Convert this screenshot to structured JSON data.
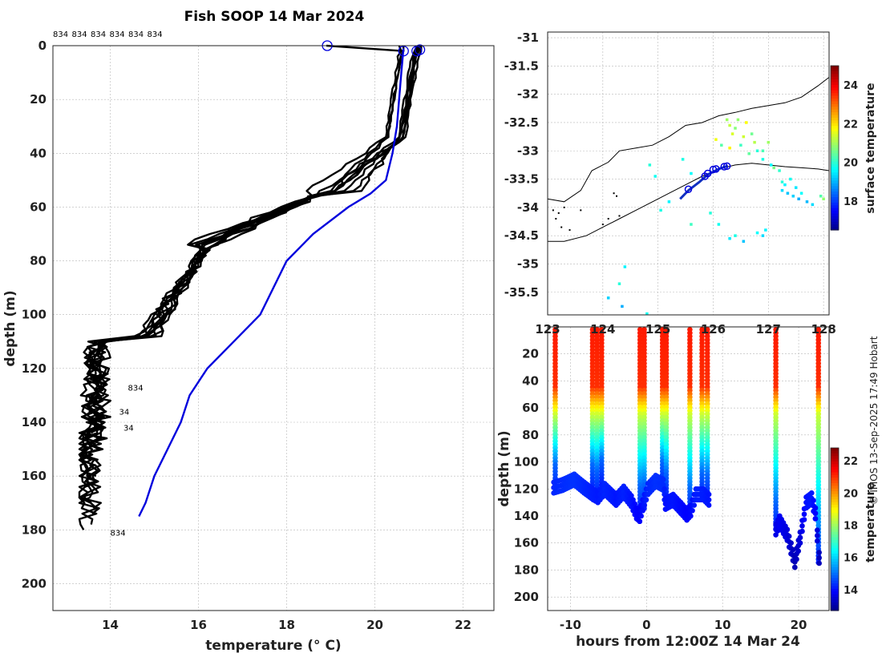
{
  "credit": "© IMOS 13-Sep-2025 17:49 Hobart",
  "chart_data": [
    {
      "id": "profiles",
      "type": "line",
      "title": "Fish SOOP 14 Mar 2024",
      "xlabel": "temperature (° C)",
      "ylabel": "depth (m)",
      "xlim": [
        12.7,
        22.7
      ],
      "ylim": [
        210,
        0
      ],
      "xticks": [
        14,
        16,
        18,
        20,
        22
      ],
      "yticks": [
        0,
        20,
        40,
        60,
        80,
        100,
        120,
        140,
        160,
        180,
        200
      ],
      "grid": true,
      "top_labels": [
        "834",
        "834",
        "834",
        "834",
        "834",
        "834"
      ],
      "bottom_labels": [
        {
          "text": "834",
          "t": 14.4,
          "d": 127
        },
        {
          "text": "34",
          "t": 14.2,
          "d": 136
        },
        {
          "text": "34",
          "t": 14.3,
          "d": 142
        },
        {
          "text": "834",
          "t": 14.0,
          "d": 181
        }
      ],
      "climatology": {
        "name": "climatology",
        "color": "#0000dd",
        "temperature": [
          20.65,
          20.6,
          20.5,
          20.4,
          20.25,
          19.9,
          19.4,
          18.6,
          18.0,
          17.4,
          16.8,
          16.2,
          15.8,
          15.6,
          15.3,
          15.0,
          14.8,
          14.65
        ],
        "depth": [
          1,
          10,
          30,
          40,
          50,
          55,
          60,
          70,
          80,
          100,
          110,
          120,
          130,
          140,
          150,
          160,
          170,
          175
        ]
      },
      "profiles": [
        {
          "surface_t": 18.9,
          "mixed_t": 20.65,
          "bottom_d": 178,
          "offset": 0.0
        },
        {
          "surface_t": 20.65,
          "mixed_t": 20.65,
          "bottom_d": 180,
          "offset": 0.15
        },
        {
          "surface_t": 20.95,
          "mixed_t": 20.95,
          "bottom_d": 170,
          "offset": 0.3
        },
        {
          "surface_t": 21.0,
          "mixed_t": 21.0,
          "bottom_d": 165,
          "offset": -0.1
        },
        {
          "surface_t": 21.05,
          "mixed_t": 21.05,
          "bottom_d": 175,
          "offset": 0.45
        },
        {
          "surface_t": 20.55,
          "mixed_t": 20.6,
          "bottom_d": 150,
          "offset": 0.6
        },
        {
          "surface_t": 21.0,
          "mixed_t": 21.0,
          "bottom_d": 160,
          "offset": -0.2
        },
        {
          "surface_t": 20.95,
          "mixed_t": 20.9,
          "bottom_d": 155,
          "offset": 0.25
        },
        {
          "surface_t": 21.05,
          "mixed_t": 21.0,
          "bottom_d": 145,
          "offset": 0.7
        },
        {
          "surface_t": 21.0,
          "mixed_t": 20.95,
          "bottom_d": 172,
          "offset": 0.05
        }
      ],
      "surface_markers": [
        {
          "t": 18.92,
          "d": 0
        },
        {
          "t": 20.65,
          "d": 2
        },
        {
          "t": 20.95,
          "d": 2
        },
        {
          "t": 21.02,
          "d": 1.5
        }
      ]
    },
    {
      "id": "map",
      "type": "scatter",
      "xlim": [
        123,
        128.1
      ],
      "ylim": [
        -35.9,
        -30.9
      ],
      "xticks": [
        123,
        124,
        125,
        126,
        127,
        128
      ],
      "yticks": [
        -31,
        -31.5,
        -32,
        -32.5,
        -33,
        -33.5,
        -34,
        -34.5,
        -35,
        -35.5
      ],
      "colorbar": {
        "label": "surface temperature",
        "ticks": [
          18,
          20,
          22,
          24
        ],
        "range": [
          16.5,
          25
        ]
      },
      "coastline": [
        [
          123,
          -33.85
        ],
        [
          123.3,
          -33.9
        ],
        [
          123.6,
          -33.7
        ],
        [
          123.8,
          -33.35
        ],
        [
          124.1,
          -33.2
        ],
        [
          124.3,
          -33.0
        ],
        [
          124.6,
          -32.95
        ],
        [
          124.9,
          -32.9
        ],
        [
          125.2,
          -32.75
        ],
        [
          125.5,
          -32.55
        ],
        [
          125.8,
          -32.5
        ],
        [
          126.1,
          -32.38
        ],
        [
          126.4,
          -32.32
        ],
        [
          126.7,
          -32.25
        ],
        [
          127.0,
          -32.2
        ],
        [
          127.3,
          -32.15
        ],
        [
          127.6,
          -32.05
        ],
        [
          127.9,
          -31.85
        ],
        [
          128.1,
          -31.7
        ]
      ],
      "shelf_edge": [
        [
          123,
          -34.6
        ],
        [
          123.3,
          -34.6
        ],
        [
          123.7,
          -34.5
        ],
        [
          124.0,
          -34.35
        ],
        [
          124.3,
          -34.2
        ],
        [
          124.6,
          -34.05
        ],
        [
          124.9,
          -33.9
        ],
        [
          125.2,
          -33.75
        ],
        [
          125.5,
          -33.6
        ],
        [
          125.8,
          -33.45
        ],
        [
          126.1,
          -33.32
        ],
        [
          126.4,
          -33.25
        ],
        [
          126.7,
          -33.22
        ],
        [
          127.0,
          -33.25
        ],
        [
          127.3,
          -33.28
        ],
        [
          127.6,
          -33.3
        ],
        [
          127.9,
          -33.32
        ],
        [
          128.1,
          -33.35
        ]
      ],
      "track": [
        [
          125.4,
          -33.85
        ],
        [
          125.55,
          -33.7
        ],
        [
          125.75,
          -33.55
        ],
        [
          125.9,
          -33.42
        ],
        [
          126.1,
          -33.32
        ],
        [
          126.25,
          -33.27
        ]
      ],
      "profile_points": [
        [
          125.55,
          -33.68
        ],
        [
          125.85,
          -33.45
        ],
        [
          125.9,
          -33.4
        ],
        [
          126.0,
          -33.33
        ],
        [
          126.05,
          -33.32
        ],
        [
          126.2,
          -33.28
        ],
        [
          126.25,
          -33.27
        ]
      ],
      "surface_points": [
        {
          "x": 126.25,
          "y": -32.45,
          "t": 21.0
        },
        {
          "x": 126.3,
          "y": -32.55,
          "t": 21.3
        },
        {
          "x": 126.4,
          "y": -32.6,
          "t": 20.8
        },
        {
          "x": 126.35,
          "y": -32.7,
          "t": 21.5
        },
        {
          "x": 126.15,
          "y": -32.9,
          "t": 20.4
        },
        {
          "x": 126.05,
          "y": -32.8,
          "t": 21.7
        },
        {
          "x": 126.5,
          "y": -32.9,
          "t": 20.2
        },
        {
          "x": 126.6,
          "y": -32.5,
          "t": 21.8
        },
        {
          "x": 126.7,
          "y": -32.7,
          "t": 20.6
        },
        {
          "x": 126.75,
          "y": -32.85,
          "t": 21.2
        },
        {
          "x": 126.8,
          "y": -33.0,
          "t": 20.0
        },
        {
          "x": 126.9,
          "y": -33.0,
          "t": 20.3
        },
        {
          "x": 127.0,
          "y": -32.85,
          "t": 21.0
        },
        {
          "x": 127.05,
          "y": -33.25,
          "t": 19.7
        },
        {
          "x": 127.1,
          "y": -33.3,
          "t": 20.7
        },
        {
          "x": 126.9,
          "y": -33.15,
          "t": 19.9
        },
        {
          "x": 127.2,
          "y": -33.35,
          "t": 20.1
        },
        {
          "x": 127.25,
          "y": -33.7,
          "t": 19.4
        },
        {
          "x": 127.3,
          "y": -33.6,
          "t": 19.6
        },
        {
          "x": 127.35,
          "y": -33.75,
          "t": 19.2
        },
        {
          "x": 127.4,
          "y": -33.5,
          "t": 19.8
        },
        {
          "x": 127.45,
          "y": -33.8,
          "t": 19.3
        },
        {
          "x": 127.5,
          "y": -33.65,
          "t": 19.5
        },
        {
          "x": 127.55,
          "y": -33.85,
          "t": 19.0
        },
        {
          "x": 127.6,
          "y": -33.75,
          "t": 19.7
        },
        {
          "x": 127.7,
          "y": -33.9,
          "t": 19.1
        },
        {
          "x": 127.8,
          "y": -33.95,
          "t": 19.4
        },
        {
          "x": 127.95,
          "y": -33.8,
          "t": 20.4
        },
        {
          "x": 128.0,
          "y": -33.85,
          "t": 20.9
        },
        {
          "x": 127.25,
          "y": -33.55,
          "t": 20.0
        },
        {
          "x": 125.45,
          "y": -33.15,
          "t": 19.9
        },
        {
          "x": 125.6,
          "y": -33.4,
          "t": 19.7
        },
        {
          "x": 124.85,
          "y": -33.25,
          "t": 20.0
        },
        {
          "x": 124.95,
          "y": -33.45,
          "t": 19.8
        },
        {
          "x": 125.2,
          "y": -33.9,
          "t": 19.6
        },
        {
          "x": 126.1,
          "y": -34.3,
          "t": 19.8
        },
        {
          "x": 126.3,
          "y": -34.55,
          "t": 19.5
        },
        {
          "x": 126.4,
          "y": -34.5,
          "t": 19.9
        },
        {
          "x": 126.55,
          "y": -34.6,
          "t": 19.2
        },
        {
          "x": 126.8,
          "y": -34.45,
          "t": 19.7
        },
        {
          "x": 126.9,
          "y": -34.5,
          "t": 19.4
        },
        {
          "x": 126.95,
          "y": -34.4,
          "t": 19.6
        },
        {
          "x": 125.6,
          "y": -34.3,
          "t": 20.2
        },
        {
          "x": 125.95,
          "y": -34.1,
          "t": 20.0
        },
        {
          "x": 124.4,
          "y": -35.05,
          "t": 19.6
        },
        {
          "x": 124.3,
          "y": -35.35,
          "t": 20.0
        },
        {
          "x": 124.1,
          "y": -35.6,
          "t": 19.3
        },
        {
          "x": 124.35,
          "y": -35.75,
          "t": 19.0
        },
        {
          "x": 124.8,
          "y": -35.88,
          "t": 19.8
        },
        {
          "x": 125.05,
          "y": -34.05,
          "t": 19.9
        },
        {
          "x": 126.3,
          "y": -32.95,
          "t": 21.9
        },
        {
          "x": 126.55,
          "y": -32.75,
          "t": 21.4
        },
        {
          "x": 126.65,
          "y": -33.05,
          "t": 20.5
        },
        {
          "x": 126.45,
          "y": -32.45,
          "t": 20.9
        },
        {
          "x": 124.1,
          "y": -34.2,
          "t": 16.8
        },
        {
          "x": 124.0,
          "y": -34.3,
          "t": 16.8
        },
        {
          "x": 124.3,
          "y": -34.15,
          "t": 16.8
        },
        {
          "x": 123.2,
          "y": -34.1,
          "t": 16.8
        },
        {
          "x": 123.3,
          "y": -34.0,
          "t": 16.8
        },
        {
          "x": 123.15,
          "y": -34.2,
          "t": 16.8
        },
        {
          "x": 123.25,
          "y": -34.35,
          "t": 16.8
        },
        {
          "x": 123.6,
          "y": -34.05,
          "t": 16.8
        },
        {
          "x": 123.4,
          "y": -34.4,
          "t": 16.8
        },
        {
          "x": 124.2,
          "y": -33.75,
          "t": 16.8
        },
        {
          "x": 124.25,
          "y": -33.8,
          "t": 16.8
        },
        {
          "x": 123.1,
          "y": -34.05,
          "t": 16.8
        }
      ]
    },
    {
      "id": "section",
      "type": "scatter",
      "xlabel": "hours from 12:00Z 14 Mar 24",
      "ylabel": "depth (m)",
      "xlim": [
        -13,
        24
      ],
      "ylim": [
        210,
        0
      ],
      "xticks": [
        -10,
        0,
        10,
        20
      ],
      "yticks": [
        20,
        40,
        60,
        80,
        100,
        120,
        140,
        160,
        180,
        200
      ],
      "top_tick_labels": [
        "123",
        "124",
        "125",
        "126",
        "127",
        "128"
      ],
      "colorbar": {
        "label": "temperature",
        "ticks": [
          14,
          16,
          18,
          20,
          22
        ],
        "range": [
          12.7,
          22.8
        ]
      },
      "casts": [
        {
          "h": -12.2,
          "bottom": 123
        },
        {
          "h": -7.0,
          "bottom": 120
        },
        {
          "h": -6.4,
          "bottom": 130
        },
        {
          "h": -0.9,
          "bottom": 138
        },
        {
          "h": -0.5,
          "bottom": 136
        },
        {
          "h": 2.2,
          "bottom": 121
        },
        {
          "h": 2.5,
          "bottom": 135
        },
        {
          "h": 5.8,
          "bottom": 140
        },
        {
          "h": 7.5,
          "bottom": 128
        },
        {
          "h": 8.2,
          "bottom": 132
        },
        {
          "h": 17.0,
          "bottom": 154
        },
        {
          "h": 22.7,
          "bottom": 175
        }
      ],
      "bottom_tracks": [
        [
          [
            -12.2,
            123
          ],
          [
            -11,
            121
          ],
          [
            -9.5,
            117
          ],
          [
            -8.2,
            123
          ],
          [
            -7.0,
            128
          ],
          [
            -6.4,
            130
          ],
          [
            -5.5,
            124
          ],
          [
            -4.0,
            132
          ],
          [
            -3.0,
            126
          ],
          [
            -2.0,
            133
          ],
          [
            -1.3,
            142
          ],
          [
            -0.9,
            144
          ],
          [
            -0.5,
            136
          ],
          [
            0.2,
            124
          ],
          [
            1.2,
            118
          ],
          [
            2.2,
            121
          ],
          [
            2.5,
            135
          ],
          [
            3.5,
            132
          ],
          [
            4.5,
            138
          ],
          [
            5.3,
            143
          ],
          [
            5.8,
            140
          ],
          [
            6.5,
            128
          ],
          [
            7.5,
            128
          ],
          [
            8.2,
            132
          ]
        ],
        [
          [
            17.0,
            154
          ],
          [
            17.5,
            148
          ],
          [
            18.5,
            158
          ],
          [
            19.0,
            168
          ],
          [
            19.5,
            178
          ],
          [
            20.2,
            160
          ],
          [
            21.0,
            134
          ],
          [
            21.7,
            131
          ],
          [
            22.2,
            142
          ],
          [
            22.7,
            175
          ]
        ]
      ],
      "columns": [
        {
          "h": -12.0,
          "bottom": 122
        },
        {
          "h": -7.1,
          "bottom": 122
        },
        {
          "h": -6.5,
          "bottom": 126
        },
        {
          "h": -5.9,
          "bottom": 118
        },
        {
          "h": -0.85,
          "bottom": 138
        },
        {
          "h": -0.3,
          "bottom": 136
        },
        {
          "h": 2.1,
          "bottom": 120
        },
        {
          "h": 2.6,
          "bottom": 128
        },
        {
          "h": 5.7,
          "bottom": 140
        },
        {
          "h": 7.3,
          "bottom": 128
        },
        {
          "h": 8.0,
          "bottom": 130
        },
        {
          "h": 17.0,
          "bottom": 150
        },
        {
          "h": 22.6,
          "bottom": 176
        }
      ]
    }
  ]
}
